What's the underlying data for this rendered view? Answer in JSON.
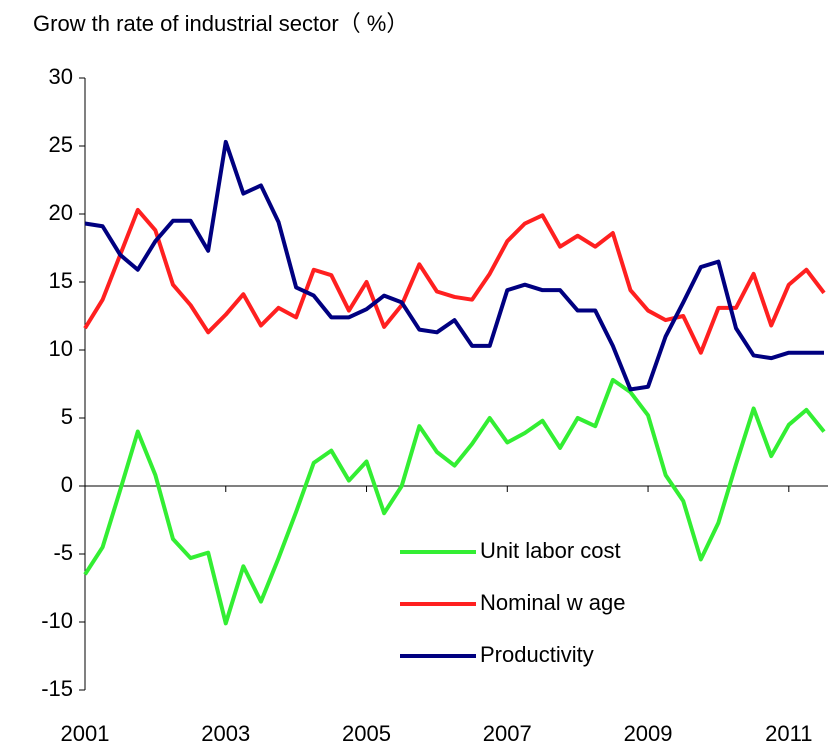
{
  "chart_data": {
    "type": "line",
    "title": "Grow th rate of industrial sector（ %）",
    "x": [
      2001,
      2001.25,
      2001.5,
      2001.75,
      2002,
      2002.25,
      2002.5,
      2002.75,
      2003,
      2003.25,
      2003.5,
      2003.75,
      2004,
      2004.25,
      2004.5,
      2004.75,
      2005,
      2005.25,
      2005.5,
      2005.75,
      2006,
      2006.25,
      2006.5,
      2006.75,
      2007,
      2007.25,
      2007.5,
      2007.75,
      2008,
      2008.25,
      2008.5,
      2008.75,
      2009,
      2009.25,
      2009.5,
      2009.75,
      2010,
      2010.25,
      2010.5,
      2010.75,
      2011,
      2011.25,
      2011.5
    ],
    "series": [
      {
        "name": "Unit labor cost",
        "color": "#33ee33",
        "values": [
          -6.5,
          -4.5,
          -0.3,
          4,
          0.8,
          -3.9,
          -5.3,
          -4.9,
          -10.1,
          -5.9,
          -8.5,
          -5.3,
          -1.9,
          1.7,
          2.6,
          0.4,
          1.8,
          -2,
          0,
          4.4,
          2.5,
          1.5,
          3.1,
          5,
          3.2,
          3.9,
          4.8,
          2.8,
          5,
          4.4,
          7.8,
          6.9,
          5.2,
          0.8,
          -1.1,
          -5.4,
          -2.7,
          1.6,
          5.7,
          2.2,
          4.5,
          5.6,
          4
        ]
      },
      {
        "name": "Nominal w age",
        "color": "#ff2020",
        "values": [
          11.6,
          13.7,
          17,
          20.3,
          18.8,
          14.8,
          13.3,
          11.3,
          12.6,
          14.1,
          11.8,
          13.1,
          12.4,
          15.9,
          15.5,
          12.9,
          15,
          11.7,
          13.3,
          16.3,
          14.3,
          13.9,
          13.7,
          15.6,
          18,
          19.3,
          19.9,
          17.6,
          18.4,
          17.6,
          18.6,
          14.4,
          12.9,
          12.2,
          12.5,
          9.8,
          13.1,
          13.1,
          15.6,
          11.8,
          14.8,
          15.9,
          14.2
        ]
      },
      {
        "name": "Productivity",
        "color": "#000080",
        "values": [
          19.3,
          19.1,
          17,
          15.9,
          18,
          19.5,
          19.5,
          17.3,
          25.3,
          21.5,
          22.1,
          19.4,
          14.6,
          14,
          12.4,
          12.4,
          13,
          14,
          13.5,
          11.5,
          11.3,
          12.2,
          10.3,
          10.3,
          14.4,
          14.8,
          14.4,
          14.4,
          12.9,
          12.9,
          10.3,
          7.1,
          7.3,
          11,
          13.5,
          16.1,
          16.5,
          11.6,
          9.6,
          9.4,
          9.8,
          9.8,
          9.8
        ]
      }
    ],
    "xlim": [
      2001,
      2011.5
    ],
    "xticks": [
      2001,
      2003,
      2005,
      2007,
      2009,
      2011
    ],
    "ylim": [
      -15,
      30
    ],
    "yticks": [
      -15,
      -10,
      -5,
      0,
      5,
      10,
      15,
      20,
      25,
      30
    ],
    "legend": "lower right"
  }
}
